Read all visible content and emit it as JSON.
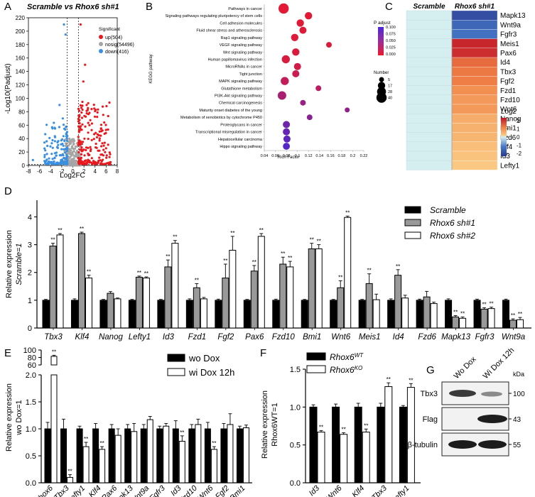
{
  "panel_letters": {
    "A": "A",
    "B": "B",
    "C": "C",
    "D": "D",
    "E": "E",
    "F": "F",
    "G": "G"
  },
  "colors": {
    "up": "#e8191e",
    "nosig": "#a6a6a6",
    "down": "#3a8fe0",
    "black": "#000000",
    "gray": "#999999",
    "white": "#ffffff"
  },
  "chart_data": [
    {
      "panel": "A",
      "type": "scatter",
      "title": "Scramble vs Rhox6 sh#1",
      "xlabel": "Log2FC",
      "ylabel": "-Log10(Padjust)",
      "xlim": [
        -8,
        8
      ],
      "ylim": [
        0,
        220
      ],
      "xticks": [
        "-8",
        "-6",
        "-4",
        "-2",
        "0",
        "2",
        "4",
        "6",
        "8"
      ],
      "yticks": [
        "0",
        "20",
        "40",
        "60",
        "80",
        "100",
        "120",
        "140",
        "160",
        "180",
        "200",
        "220"
      ],
      "legend_title": "Significant",
      "legend": [
        {
          "key": "up",
          "label": "up(504)"
        },
        {
          "key": "nosig",
          "label": "nosig(54496)"
        },
        {
          "key": "down",
          "label": "down(416)"
        }
      ],
      "thresholds": {
        "log2fc": [
          -1,
          1
        ],
        "padj_line": 1.3
      }
    },
    {
      "panel": "B",
      "type": "scatter",
      "ylabel": "KEGG pathway",
      "xlabel": "Rich Factor",
      "xlim": [
        0.04,
        0.22
      ],
      "xticks": [
        "0.04",
        "0.06",
        "0.08",
        "0.1",
        "0.12",
        "0.14",
        "0.16",
        "0.18",
        "0.2",
        "0.22"
      ],
      "color_title": "P adjust",
      "color_ticks": [
        "0.100",
        "0.075",
        "0.050",
        "0.025",
        "0.000"
      ],
      "size_title": "Number",
      "size_legend": [
        "5",
        "17",
        "28",
        "40"
      ],
      "pathways": [
        {
          "name": "Pathways in cancer",
          "x": 0.075,
          "n": 40,
          "p": 0.005
        },
        {
          "name": "Signaling pathways regulating pluripotency of stem cells",
          "x": 0.12,
          "n": 17,
          "p": 0.006
        },
        {
          "name": "Cell adhesion molecules",
          "x": 0.105,
          "n": 17,
          "p": 0.007
        },
        {
          "name": "Fluid shear stress and atherosclerosis",
          "x": 0.11,
          "n": 15,
          "p": 0.008
        },
        {
          "name": "Rap1 signaling pathway",
          "x": 0.095,
          "n": 17,
          "p": 0.008
        },
        {
          "name": "VEGF signaling pathway",
          "x": 0.157,
          "n": 8,
          "p": 0.01
        },
        {
          "name": "Wnt signaling pathway",
          "x": 0.097,
          "n": 17,
          "p": 0.01
        },
        {
          "name": "Human papillomavirus infection",
          "x": 0.079,
          "n": 22,
          "p": 0.012
        },
        {
          "name": "MicroRNAs in cancer",
          "x": 0.1,
          "n": 15,
          "p": 0.015
        },
        {
          "name": "Tight junction",
          "x": 0.097,
          "n": 15,
          "p": 0.02
        },
        {
          "name": "MAPK signaling pathway",
          "x": 0.077,
          "n": 22,
          "p": 0.025
        },
        {
          "name": "Glutathione metabolism",
          "x": 0.138,
          "n": 8,
          "p": 0.03
        },
        {
          "name": "PI3K-Akt signaling pathway",
          "x": 0.072,
          "n": 25,
          "p": 0.04
        },
        {
          "name": "Chemical carcinogenesis",
          "x": 0.11,
          "n": 8,
          "p": 0.05
        },
        {
          "name": "Maturity onset diabetes of the young",
          "x": 0.19,
          "n": 5,
          "p": 0.055
        },
        {
          "name": "Metabolism of xenobiotics by cytochrome P450",
          "x": 0.122,
          "n": 8,
          "p": 0.06
        },
        {
          "name": "Proteoglycans in cancer",
          "x": 0.08,
          "n": 15,
          "p": 0.075
        },
        {
          "name": "Transcriptional misregulation in cancer",
          "x": 0.08,
          "n": 15,
          "p": 0.08
        },
        {
          "name": "Hepatocellular carcinoma",
          "x": 0.081,
          "n": 15,
          "p": 0.085
        },
        {
          "name": "Hippo signaling pathway",
          "x": 0.08,
          "n": 14,
          "p": 0.09
        }
      ]
    },
    {
      "panel": "C",
      "type": "heatmap",
      "columns": [
        "Scramble",
        "Rhox6 sh#1"
      ],
      "rows": [
        "Mapk13",
        "Wnt9a",
        "Fgfr3",
        "Meis1",
        "Pax6",
        "Id4",
        "Tbx3",
        "Fgf2",
        "Fzd1",
        "Fzd10",
        "Wnt6",
        "Nanog",
        "Bmi1",
        "Fzd6",
        "Klf4",
        "Id3",
        "Lefty1"
      ],
      "values": [
        [
          0,
          -2.1
        ],
        [
          0,
          -1.6
        ],
        [
          0,
          -1.4
        ],
        [
          0,
          2.3
        ],
        [
          0,
          2.2
        ],
        [
          0,
          1.5
        ],
        [
          0,
          1.35
        ],
        [
          0,
          1.3
        ],
        [
          0,
          1.1
        ],
        [
          0,
          1.0
        ],
        [
          0,
          1.0
        ],
        [
          0,
          0.8
        ],
        [
          0,
          0.75
        ],
        [
          0,
          0.7
        ],
        [
          0,
          0.6
        ],
        [
          0,
          0.55
        ],
        [
          0,
          0.5
        ]
      ],
      "legend_title": "Log2",
      "legend_ticks": [
        "2",
        "1",
        "0",
        "-1",
        "-2"
      ],
      "range": [
        -2.5,
        2.5
      ]
    },
    {
      "panel": "D",
      "type": "bar",
      "ylabel": "Relative expression",
      "ylabel2": "Scramble=1",
      "ylim": [
        0,
        4.5
      ],
      "yticks": [
        "0",
        "1",
        "2",
        "3",
        "4"
      ],
      "legend": [
        "Scramble",
        "Rhox6 sh#1",
        "Rhox6 sh#2"
      ],
      "categories": [
        "Tbx3",
        "Klf4",
        "Nanog",
        "Lefty1",
        "Id3",
        "Fzd1",
        "Fgf2",
        "Pax6",
        "Fzd10",
        "Bmi1",
        "Wnt6",
        "Meis1",
        "Id4",
        "Fzd6",
        "Mapk13",
        "Fgfr3",
        "Wnt9a"
      ],
      "series": [
        {
          "name": "Scramble",
          "values": [
            1,
            1,
            1,
            1,
            1,
            1,
            1,
            1,
            1,
            1,
            1,
            1,
            1,
            1,
            1,
            1,
            1
          ],
          "err": [
            0.03,
            0.05,
            0.03,
            0.03,
            0.03,
            0.05,
            0.04,
            0.03,
            0.04,
            0.03,
            0.03,
            0.03,
            0.05,
            0.04,
            0.05,
            0.04,
            0.04
          ]
        },
        {
          "name": "Rhox6 sh#1",
          "values": [
            2.95,
            3.4,
            1.25,
            1.83,
            2.2,
            1.45,
            1.8,
            2.05,
            2.3,
            2.85,
            1.45,
            1.6,
            1.9,
            1.12,
            0.4,
            0.68,
            0.28
          ],
          "err": [
            0.1,
            0.05,
            0.06,
            0.04,
            0.25,
            0.15,
            0.5,
            0.2,
            0.25,
            0.2,
            0.25,
            0.35,
            0.2,
            0.2,
            0.05,
            0.05,
            0.05
          ]
        },
        {
          "name": "Rhox6 sh#2",
          "values": [
            3.35,
            1.8,
            1.05,
            1.8,
            3.05,
            1.05,
            2.8,
            3.3,
            2.2,
            2.85,
            3.98,
            1.02,
            1.08,
            0.88,
            0.35,
            0.7,
            0.3
          ],
          "err": [
            0.05,
            0.1,
            0.03,
            0.04,
            0.1,
            0.05,
            0.5,
            0.1,
            0.2,
            0.15,
            0.05,
            0.2,
            0.1,
            0.05,
            0.05,
            0.05,
            0.08
          ]
        }
      ],
      "sig": [
        [
          "",
          "**",
          "**"
        ],
        [
          "",
          "**",
          "**"
        ],
        [
          "",
          "",
          ""
        ],
        [
          "",
          "**",
          "**"
        ],
        [
          "",
          "**",
          "**"
        ],
        [
          "",
          "**",
          ""
        ],
        [
          "",
          "**",
          "**"
        ],
        [
          "",
          "**",
          "**"
        ],
        [
          "",
          "**",
          "**"
        ],
        [
          "",
          "**",
          "**"
        ],
        [
          "",
          "**",
          "**"
        ],
        [
          "",
          "**",
          ""
        ],
        [
          "",
          "**",
          ""
        ],
        [
          "",
          "",
          ""
        ],
        [
          "",
          "**",
          "**"
        ],
        [
          "",
          "**",
          "**"
        ],
        [
          "",
          "**",
          "**"
        ]
      ]
    },
    {
      "panel": "E",
      "type": "bar",
      "ylabel": "Relative expression",
      "ylabel2": "wo Dox=1",
      "yticks_low": [
        "0.0",
        "0.5",
        "1.0",
        "1.5",
        "2.0"
      ],
      "yticks_high": [
        "60",
        "80",
        "100"
      ],
      "legend": [
        "wo Dox",
        "wi Dox 12h"
      ],
      "categories": [
        "Rhox6",
        "Tbx3",
        "Lefty1",
        "Klf4",
        "Pax6",
        "Mapk13",
        "Wnt9a",
        "Fgfr3",
        "Id3",
        "Fzd10",
        "Wnt6",
        "Fgf2",
        "Bmi1"
      ],
      "series": [
        {
          "name": "wo Dox",
          "values": [
            1,
            1,
            1,
            1,
            1,
            1,
            1,
            1,
            1,
            1,
            1,
            1,
            1
          ],
          "err": [
            0.12,
            0.18,
            0.05,
            0.1,
            0.08,
            0.08,
            0.08,
            0.05,
            0.15,
            0.08,
            0.12,
            0.1,
            0.05
          ]
        },
        {
          "name": "wi Dox 12h",
          "values": [
            83,
            0.1,
            0.67,
            0.62,
            0.88,
            0.95,
            1.17,
            1.05,
            0.77,
            1.08,
            0.62,
            1.08,
            1.02
          ],
          "err": [
            3,
            0.05,
            0.08,
            0.05,
            0.12,
            0.15,
            0.06,
            0.05,
            0.1,
            0.1,
            0.05,
            0.2,
            0.05
          ]
        }
      ],
      "sig": [
        [
          "",
          "**"
        ],
        [
          "",
          "**"
        ],
        [
          "",
          "**"
        ],
        [
          "",
          "**"
        ],
        [
          "",
          ""
        ],
        [
          "",
          ""
        ],
        [
          "",
          ""
        ],
        [
          "",
          ""
        ],
        [
          "",
          "**"
        ],
        [
          "",
          ""
        ],
        [
          "",
          "**"
        ],
        [
          "",
          ""
        ],
        [
          "",
          ""
        ]
      ]
    },
    {
      "panel": "F",
      "type": "bar",
      "ylabel": "Relative expression",
      "ylabel2": "Rhox6WT=1",
      "ylim": [
        0,
        1.5
      ],
      "yticks": [
        "0.0",
        "0.5",
        "1.0",
        "1.5"
      ],
      "legend": [
        "Rhox6WT",
        "Rhox6KO"
      ],
      "categories": [
        "Id3",
        "Wnt6",
        "Klf4",
        "Tbx3",
        "Lefty1"
      ],
      "series": [
        {
          "name": "Rhox6WT",
          "values": [
            1,
            1,
            1,
            1,
            1
          ],
          "err": [
            0.03,
            0.04,
            0.05,
            0.05,
            0.02
          ]
        },
        {
          "name": "Rhox6KO",
          "values": [
            0.67,
            0.64,
            0.67,
            1.27,
            1.26
          ],
          "err": [
            0.02,
            0.02,
            0.04,
            0.05,
            0.05
          ]
        }
      ],
      "sig": [
        [
          "",
          "**"
        ],
        [
          "",
          "**"
        ],
        [
          "",
          "**"
        ],
        [
          "",
          "**"
        ],
        [
          "",
          "**"
        ]
      ]
    }
  ],
  "blot": {
    "columns": [
      "Wo Dox",
      "Wi Dox 12h"
    ],
    "kda_label": "kDa",
    "rows": [
      {
        "label": "Tbx3",
        "kda": "100"
      },
      {
        "label": "Flag",
        "kda": "43"
      },
      {
        "label": "β-tubulin",
        "kda": "55"
      }
    ]
  }
}
